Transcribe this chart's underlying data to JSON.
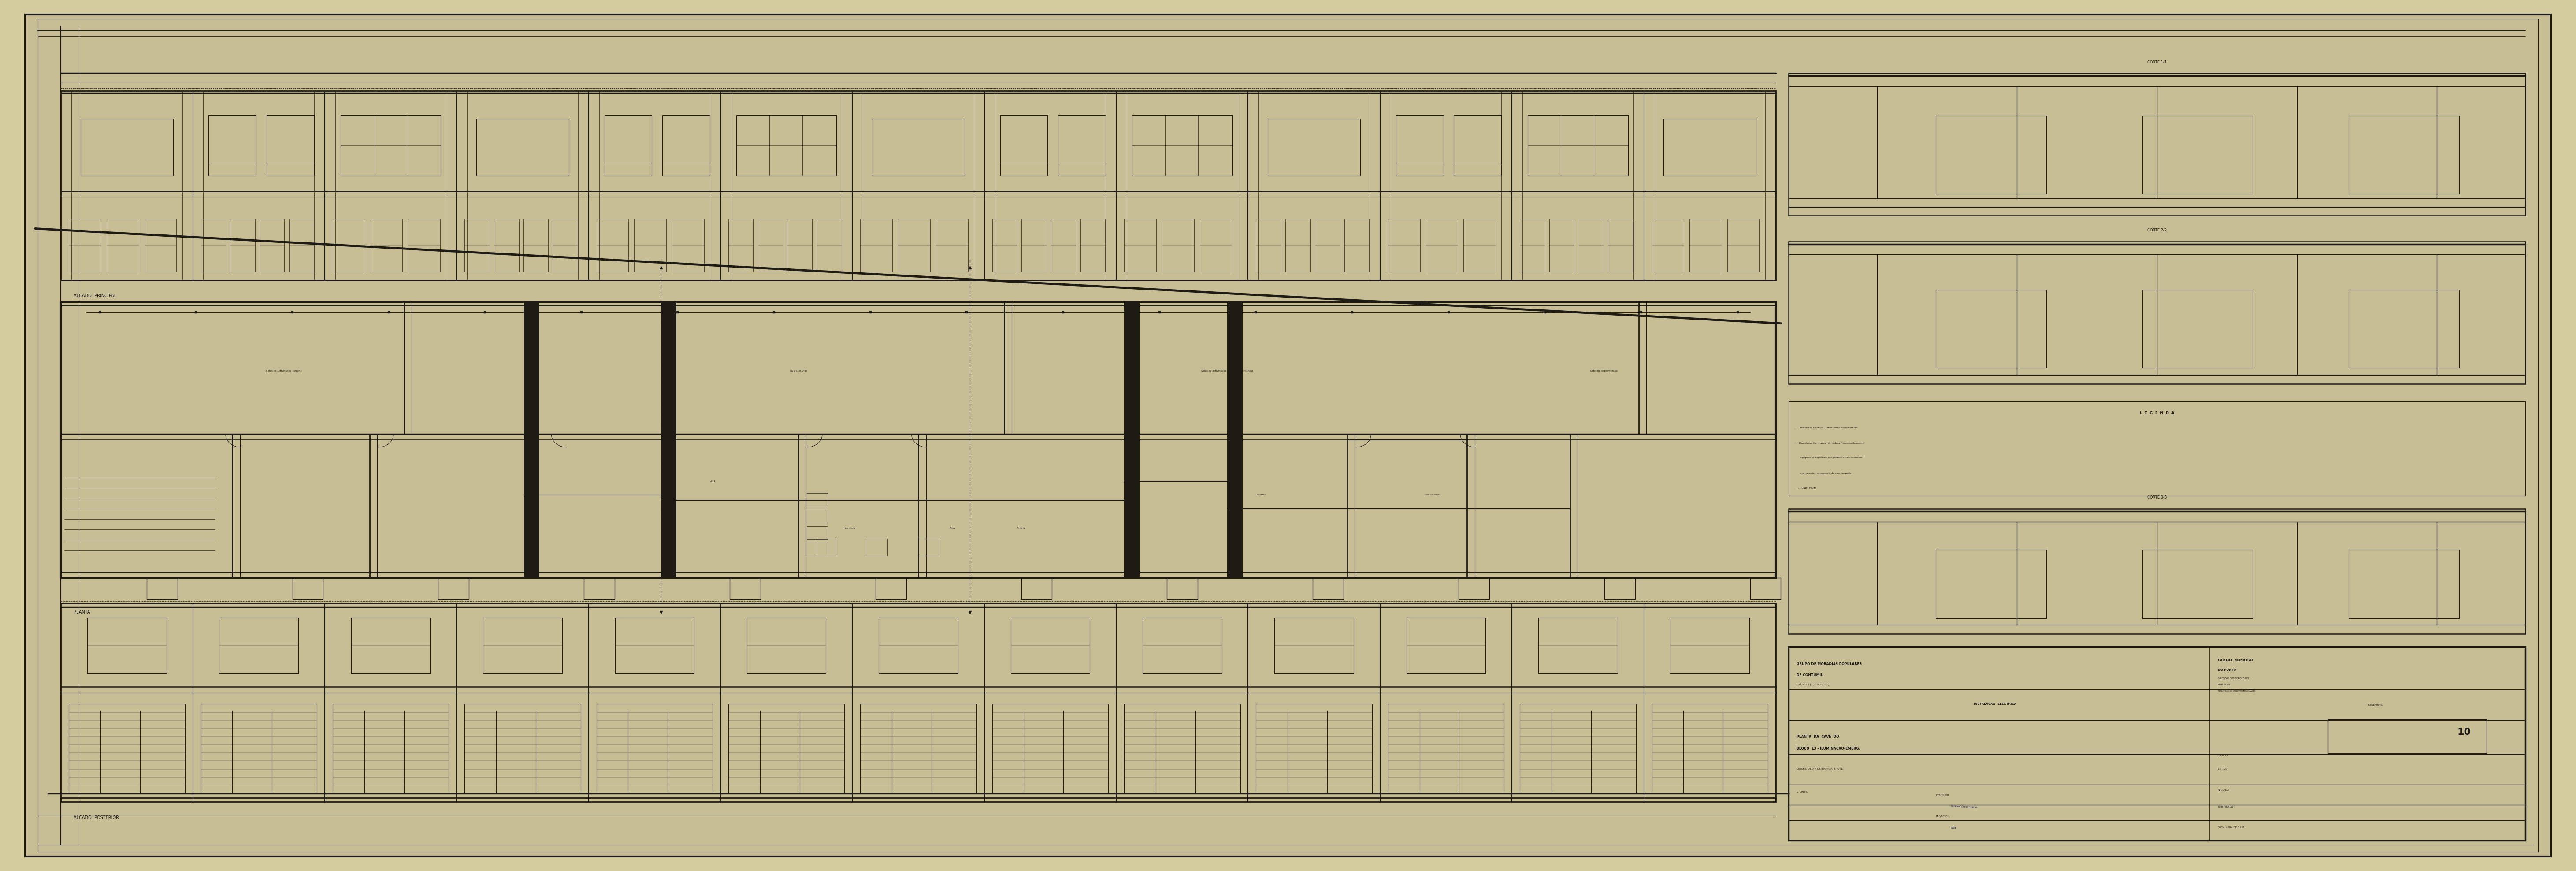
{
  "bg_outer": "#d4cc9e",
  "bg_paper": "#c8be96",
  "line_color": "#1e1a14",
  "fig_width": 58.26,
  "fig_height": 19.56,
  "label_front": "ALCADO  PRINCIPAL",
  "label_plan": "PLANTA",
  "label_rear": "ALCADO  POSTERIOR",
  "legend_title": "L  E  G  E  N  D  A",
  "corte_labels": [
    "CORTE 1-1",
    "CORTE 2-2",
    "CORTE 3-3"
  ],
  "tb_title1": "GRUPO DE MORADIAS POPULARES",
  "tb_title2": "DE CONTUMIL",
  "tb_title3": "( 3ª FASE )  ( GRUPO C )",
  "tb_title4": "INSTALACAO  ELECTRICA",
  "tb_right1": "CAMARA  MUNICIPAL",
  "tb_right2": "DO PORTO",
  "tb_right3": "DIRECCAO DOS SERVICOS DE",
  "tb_right4": "HABITACAO",
  "tb_right5": "REPARTICAO DE CONSTRUCAO DE CASAS",
  "tb_draw1": "PLANTA  DA  CAVE  DO",
  "tb_draw2": "BLOCO  13 - ILUMINACAO-EMERG.",
  "tb_sub": "CRECHE, JARDIM DE INFANCIA  E  A.T.L.",
  "tb_no": "10",
  "tb_scale": "1 : 100",
  "tb_date": "DATA  MAIO  DE  1981",
  "tb_desno": "DESENHO N.",
  "tb_escalas": "ESCALAS",
  "tb_anulado": "ANULADO",
  "tb_subs": "SUBSTITUIDO",
  "tb_chefe": "O  CHEFE,",
  "tb_desenhou": "DESENHOU,",
  "tb_projectou": "PROJECTOU,"
}
